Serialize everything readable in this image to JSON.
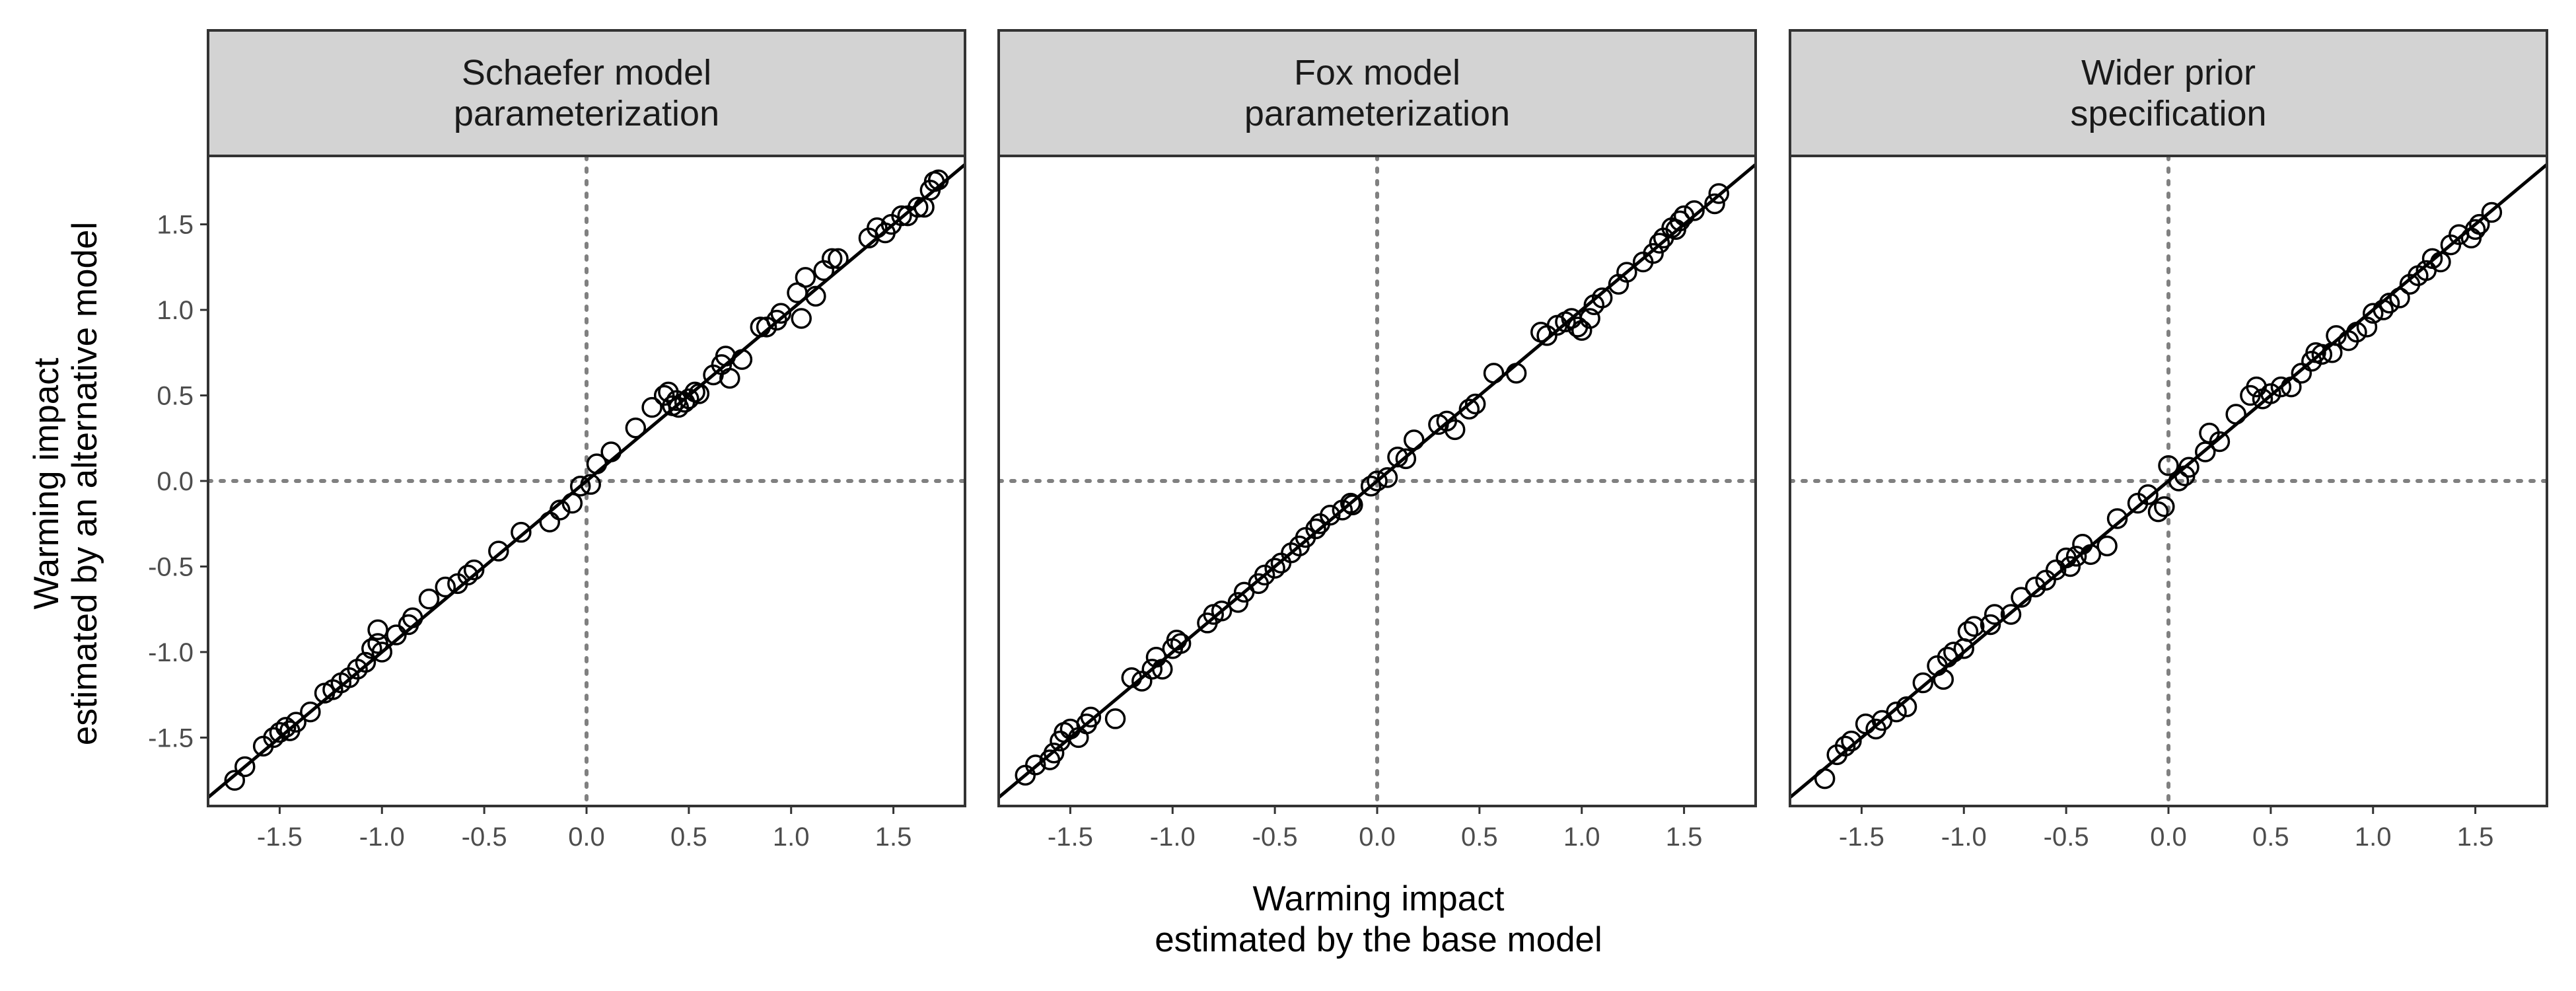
{
  "chart_data": {
    "type": "scatter",
    "xlabel": [
      "Warming impact",
      "estimated by the base model"
    ],
    "ylabel": [
      "Warming impact",
      "estimated by an alternative model"
    ],
    "xlim": [
      -1.85,
      1.85
    ],
    "ylim": [
      -1.9,
      1.9
    ],
    "xticks": [
      -1.5,
      -1.0,
      -0.5,
      0.0,
      0.5,
      1.0,
      1.5
    ],
    "xtick_labels": [
      "-1.5",
      "-1.0",
      "-0.5",
      "0.0",
      "0.5",
      "1.0",
      "1.5"
    ],
    "yticks": [
      -1.5,
      -1.0,
      -0.5,
      0.0,
      0.5,
      1.0,
      1.5
    ],
    "ytick_labels": [
      "-1.5",
      "-1.0",
      "-0.5",
      "0.0",
      "0.5",
      "1.0",
      "1.5"
    ],
    "reference_lines": {
      "identity": true,
      "x_zero": 0.0,
      "y_zero": 0.0
    },
    "grid": false,
    "panels": [
      {
        "strip": [
          "Schaefer model",
          "parameterization"
        ],
        "x": [
          -1.72,
          -1.67,
          -1.58,
          -1.53,
          -1.5,
          -1.47,
          -1.45,
          -1.42,
          -1.35,
          -1.28,
          -1.24,
          -1.2,
          -1.16,
          -1.12,
          -1.08,
          -1.05,
          -1.02,
          -1.02,
          -1.0,
          -0.93,
          -0.87,
          -0.85,
          -0.77,
          -0.69,
          -0.63,
          -0.58,
          -0.55,
          -0.43,
          -0.32,
          -0.18,
          -0.13,
          -0.07,
          -0.03,
          0.02,
          0.05,
          0.12,
          0.24,
          0.32,
          0.38,
          0.4,
          0.42,
          0.44,
          0.45,
          0.48,
          0.5,
          0.53,
          0.55,
          0.62,
          0.66,
          0.68,
          0.7,
          0.76,
          0.85,
          0.88,
          0.93,
          0.95,
          1.03,
          1.05,
          1.07,
          1.12,
          1.16,
          1.2,
          1.23,
          1.38,
          1.42,
          1.46,
          1.49,
          1.54,
          1.57,
          1.62,
          1.65,
          1.68,
          1.7,
          1.72
        ],
        "y": [
          -1.75,
          -1.67,
          -1.55,
          -1.5,
          -1.47,
          -1.44,
          -1.46,
          -1.41,
          -1.35,
          -1.24,
          -1.22,
          -1.18,
          -1.15,
          -1.1,
          -1.06,
          -0.98,
          -0.95,
          -0.87,
          -1.0,
          -0.9,
          -0.84,
          -0.8,
          -0.69,
          -0.62,
          -0.6,
          -0.55,
          -0.52,
          -0.41,
          -0.3,
          -0.24,
          -0.17,
          -0.13,
          -0.03,
          -0.02,
          0.1,
          0.17,
          0.31,
          0.43,
          0.5,
          0.52,
          0.44,
          0.47,
          0.43,
          0.46,
          0.48,
          0.52,
          0.51,
          0.62,
          0.68,
          0.73,
          0.6,
          0.71,
          0.9,
          0.9,
          0.94,
          0.98,
          1.1,
          0.95,
          1.19,
          1.08,
          1.23,
          1.3,
          1.3,
          1.42,
          1.48,
          1.45,
          1.5,
          1.55,
          1.55,
          1.6,
          1.6,
          1.7,
          1.75,
          1.76
        ]
      },
      {
        "strip": [
          "Fox model",
          "parameterization"
        ],
        "x": [
          -1.72,
          -1.67,
          -1.6,
          -1.58,
          -1.55,
          -1.53,
          -1.5,
          -1.46,
          -1.42,
          -1.4,
          -1.28,
          -1.2,
          -1.15,
          -1.1,
          -1.08,
          -1.05,
          -1.0,
          -0.98,
          -0.96,
          -0.83,
          -0.8,
          -0.76,
          -0.68,
          -0.65,
          -0.58,
          -0.55,
          -0.5,
          -0.47,
          -0.42,
          -0.38,
          -0.35,
          -0.3,
          -0.28,
          -0.23,
          -0.17,
          -0.13,
          -0.12,
          -0.03,
          0.0,
          0.05,
          0.1,
          0.14,
          0.18,
          0.3,
          0.34,
          0.38,
          0.45,
          0.48,
          0.57,
          0.68,
          0.8,
          0.83,
          0.88,
          0.92,
          0.95,
          0.98,
          1.0,
          1.04,
          1.06,
          1.1,
          1.18,
          1.22,
          1.3,
          1.35,
          1.38,
          1.4,
          1.44,
          1.46,
          1.48,
          1.5,
          1.55,
          1.65,
          1.67
        ],
        "y": [
          -1.72,
          -1.66,
          -1.63,
          -1.59,
          -1.52,
          -1.47,
          -1.45,
          -1.5,
          -1.42,
          -1.38,
          -1.39,
          -1.15,
          -1.17,
          -1.1,
          -1.03,
          -1.1,
          -0.98,
          -0.93,
          -0.95,
          -0.83,
          -0.78,
          -0.76,
          -0.71,
          -0.65,
          -0.6,
          -0.55,
          -0.51,
          -0.48,
          -0.42,
          -0.38,
          -0.33,
          -0.28,
          -0.25,
          -0.2,
          -0.17,
          -0.13,
          -0.14,
          -0.03,
          0.0,
          0.02,
          0.14,
          0.13,
          0.24,
          0.33,
          0.35,
          0.3,
          0.42,
          0.45,
          0.63,
          0.63,
          0.87,
          0.85,
          0.91,
          0.93,
          0.95,
          0.9,
          0.88,
          0.95,
          1.03,
          1.07,
          1.15,
          1.22,
          1.28,
          1.33,
          1.39,
          1.42,
          1.48,
          1.47,
          1.52,
          1.55,
          1.58,
          1.62,
          1.68
        ]
      },
      {
        "strip": [
          "Wider prior",
          "specification"
        ],
        "x": [
          -1.68,
          -1.62,
          -1.58,
          -1.55,
          -1.48,
          -1.43,
          -1.4,
          -1.33,
          -1.28,
          -1.2,
          -1.13,
          -1.1,
          -1.08,
          -1.05,
          -1.0,
          -0.98,
          -0.95,
          -0.87,
          -0.85,
          -0.77,
          -0.72,
          -0.65,
          -0.6,
          -0.55,
          -0.5,
          -0.48,
          -0.45,
          -0.42,
          -0.38,
          -0.3,
          -0.25,
          -0.15,
          -0.1,
          -0.05,
          -0.02,
          0.0,
          0.05,
          0.08,
          0.1,
          0.18,
          0.2,
          0.25,
          0.33,
          0.4,
          0.43,
          0.46,
          0.5,
          0.55,
          0.6,
          0.65,
          0.7,
          0.72,
          0.75,
          0.8,
          0.82,
          0.88,
          0.92,
          0.97,
          1.0,
          1.05,
          1.08,
          1.13,
          1.18,
          1.22,
          1.26,
          1.29,
          1.33,
          1.38,
          1.42,
          1.48,
          1.5,
          1.52,
          1.58
        ],
        "y": [
          -1.74,
          -1.6,
          -1.55,
          -1.52,
          -1.42,
          -1.45,
          -1.4,
          -1.35,
          -1.32,
          -1.18,
          -1.08,
          -1.16,
          -1.03,
          -1.0,
          -0.98,
          -0.88,
          -0.85,
          -0.84,
          -0.78,
          -0.78,
          -0.68,
          -0.62,
          -0.58,
          -0.52,
          -0.45,
          -0.5,
          -0.44,
          -0.37,
          -0.43,
          -0.38,
          -0.22,
          -0.13,
          -0.08,
          -0.18,
          -0.15,
          0.09,
          0.0,
          0.03,
          0.08,
          0.17,
          0.28,
          0.23,
          0.39,
          0.5,
          0.55,
          0.48,
          0.51,
          0.55,
          0.55,
          0.63,
          0.7,
          0.75,
          0.74,
          0.75,
          0.85,
          0.82,
          0.87,
          0.9,
          0.98,
          1.0,
          1.04,
          1.07,
          1.15,
          1.2,
          1.23,
          1.3,
          1.28,
          1.38,
          1.44,
          1.42,
          1.47,
          1.5,
          1.57
        ]
      }
    ]
  }
}
